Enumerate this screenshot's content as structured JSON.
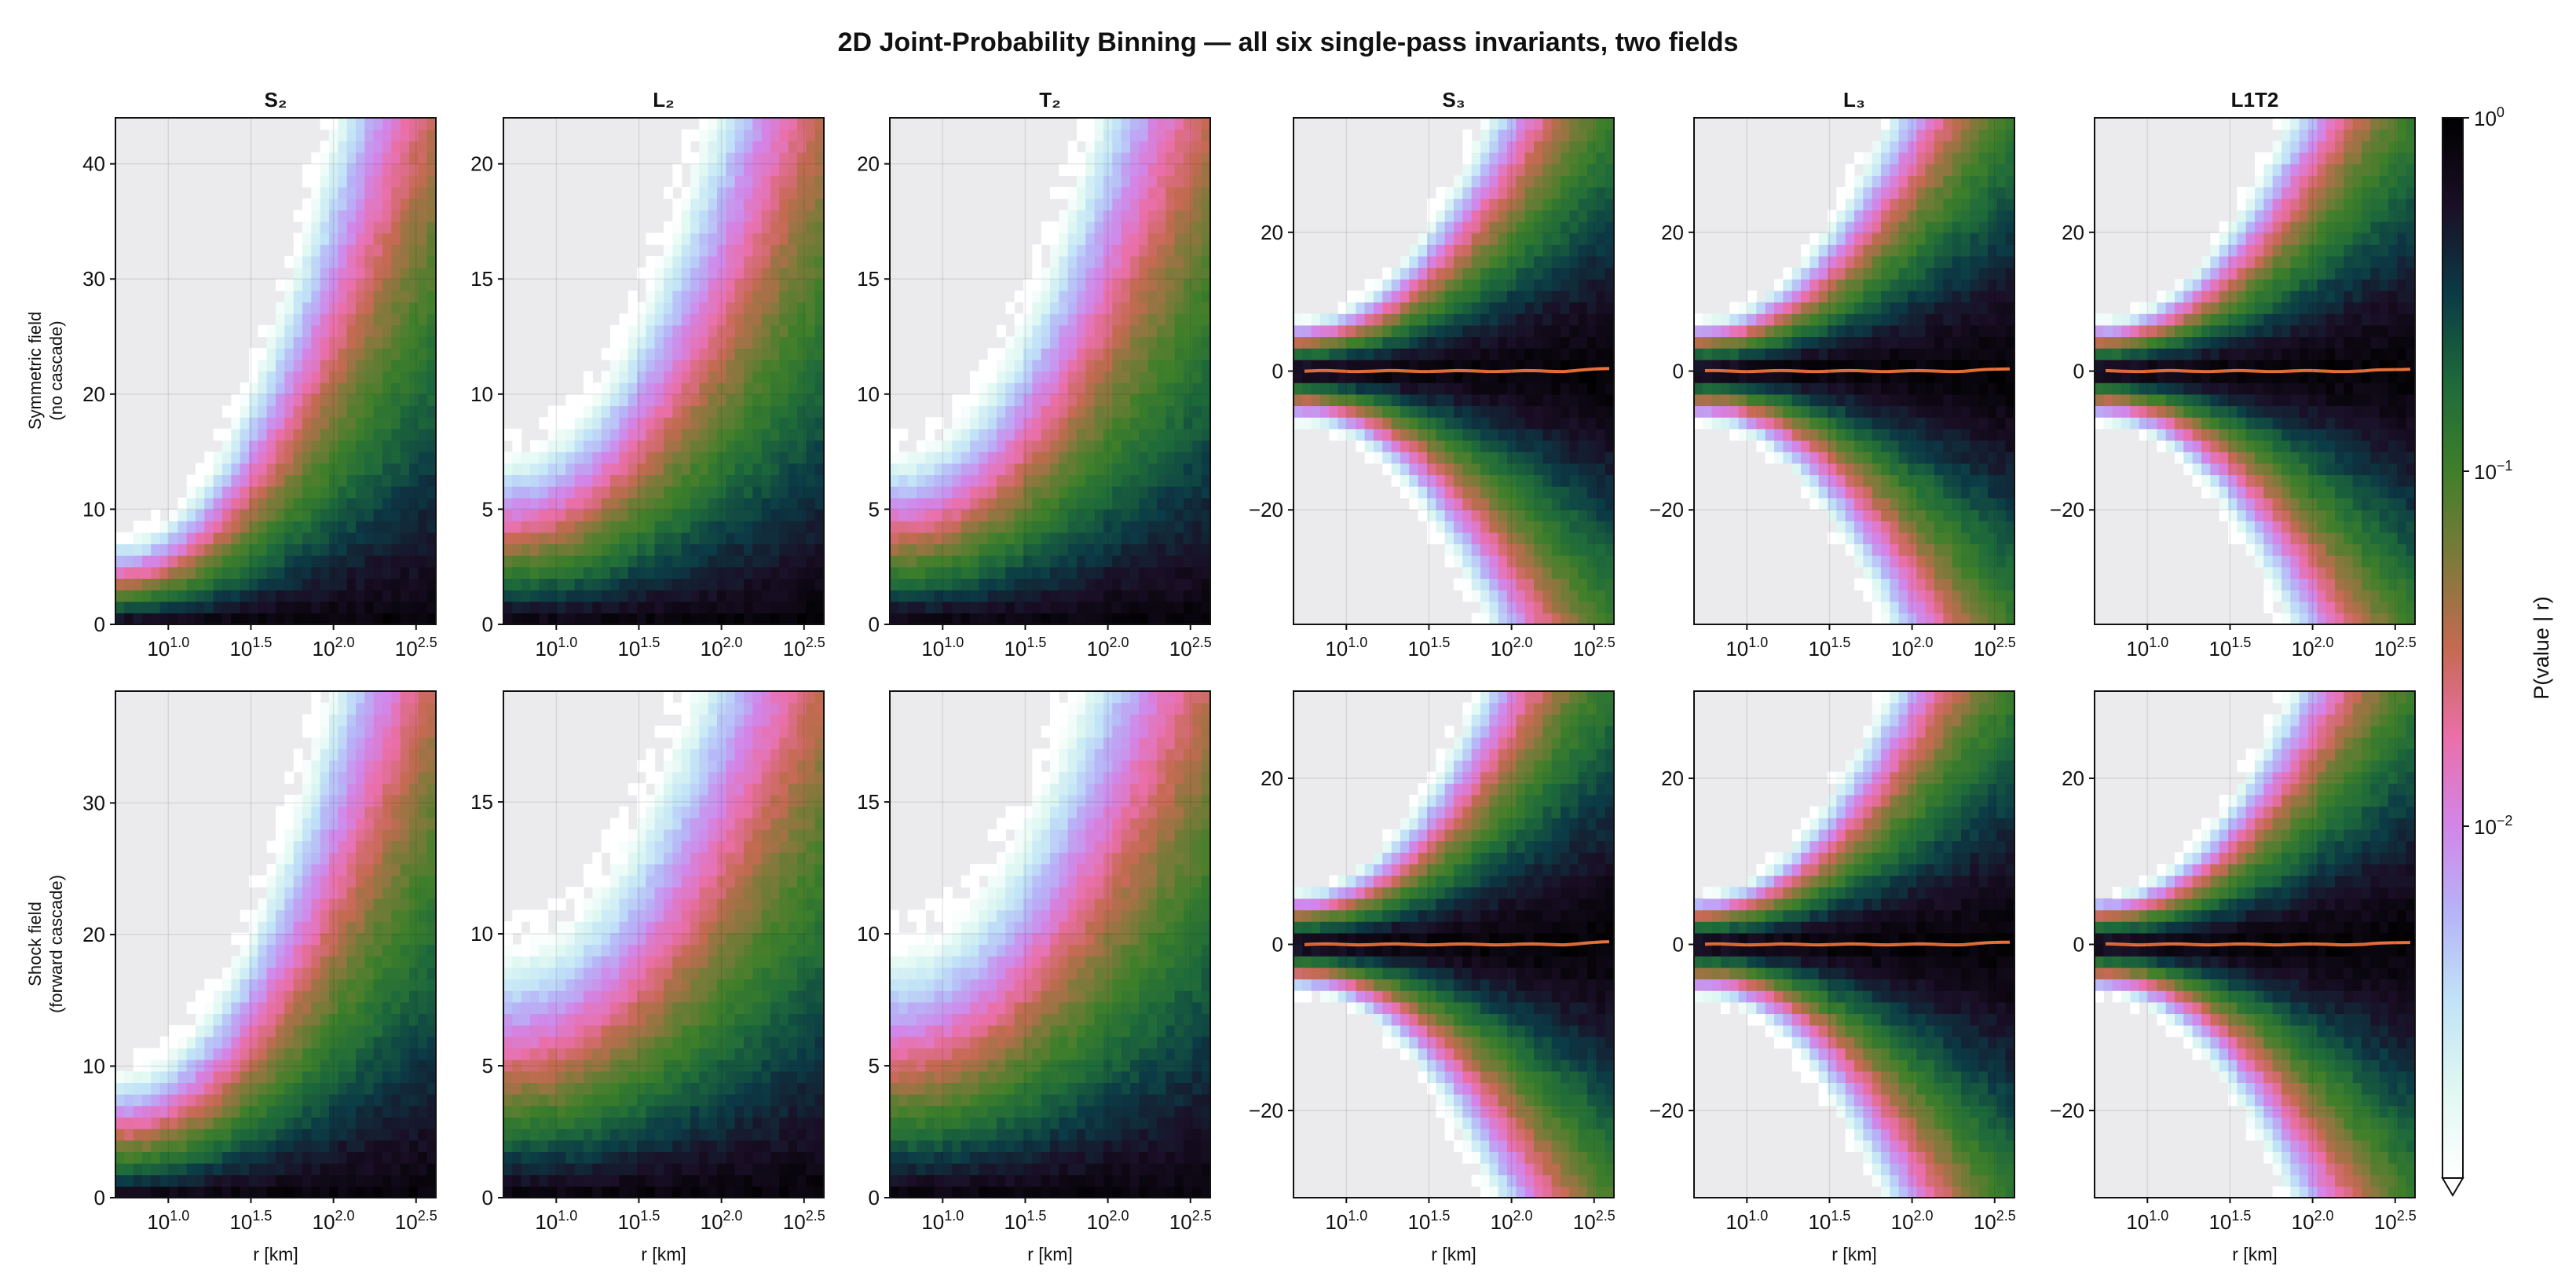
{
  "chart_data": {
    "type": "heatmap",
    "title": "2D Joint-Probability Binning — all six single-pass invariants, two fields",
    "xlabel": "r  [km]",
    "colorbar": {
      "label": "P(value | r)",
      "scale": "log",
      "ticks": [
        {
          "base": "10",
          "exp": "0"
        },
        {
          "base": "10",
          "exp": "−1"
        },
        {
          "base": "10",
          "exp": "−2"
        }
      ],
      "colormap": [
        "#000000",
        "#1a0f26",
        "#0b3b46",
        "#1e6a3a",
        "#3f7f2a",
        "#7e7a3a",
        "#c56a52",
        "#ea6fa8",
        "#d285e8",
        "#b6b4f7",
        "#c1e3f7",
        "#e0f8f2",
        "#ffffff"
      ],
      "extend": "min"
    },
    "x_tick_labels": [
      {
        "base": "10",
        "exp": "1.0"
      },
      {
        "base": "10",
        "exp": "1.5"
      },
      {
        "base": "10",
        "exp": "2.0"
      },
      {
        "base": "10",
        "exp": "2.5"
      }
    ],
    "x_log_range": [
      0.68,
      2.62
    ],
    "grid": true,
    "row_labels": [
      [
        "Symmetric field",
        "(no cascade)"
      ],
      [
        "Shock field",
        "(forward cascade)"
      ]
    ],
    "panels": [
      {
        "row": 0,
        "title": "S₂",
        "kind": "positive",
        "ylim": [
          0,
          44
        ],
        "yticks": [
          "0",
          "10",
          "20",
          "30",
          "40"
        ],
        "mean_line": false
      },
      {
        "row": 0,
        "title": "L₂",
        "kind": "positive",
        "ylim": [
          0,
          22
        ],
        "yticks": [
          "0",
          "5",
          "10",
          "15",
          "20"
        ],
        "mean_line": false
      },
      {
        "row": 0,
        "title": "T₂",
        "kind": "positive",
        "ylim": [
          0,
          22
        ],
        "yticks": [
          "0",
          "5",
          "10",
          "15",
          "20"
        ],
        "mean_line": false
      },
      {
        "row": 0,
        "title": "S₃",
        "kind": "signed",
        "ylim": [
          -36.5,
          36.5
        ],
        "yticks": [
          "−20",
          "0",
          "20"
        ],
        "mean_line": true
      },
      {
        "row": 0,
        "title": "L₃",
        "kind": "signed",
        "ylim": [
          -36.5,
          36.5
        ],
        "yticks": [
          "−20",
          "0",
          "20"
        ],
        "mean_line": true
      },
      {
        "row": 0,
        "title": "L1T2",
        "kind": "signed",
        "ylim": [
          -36.5,
          36.5
        ],
        "yticks": [
          "−20",
          "0",
          "20"
        ],
        "mean_line": true
      },
      {
        "row": 1,
        "title": "",
        "kind": "positive",
        "ylim": [
          0,
          38.5
        ],
        "yticks": [
          "0",
          "10",
          "20",
          "30"
        ],
        "mean_line": false
      },
      {
        "row": 1,
        "title": "",
        "kind": "positive",
        "ylim": [
          0,
          19.2
        ],
        "yticks": [
          "0",
          "5",
          "10",
          "15"
        ],
        "mean_line": false
      },
      {
        "row": 1,
        "title": "",
        "kind": "positive",
        "ylim": [
          0,
          19.2
        ],
        "yticks": [
          "0",
          "5",
          "10",
          "15"
        ],
        "mean_line": false
      },
      {
        "row": 1,
        "title": "",
        "kind": "signed",
        "ylim": [
          -30.5,
          30.5
        ],
        "yticks": [
          "−20",
          "0",
          "20"
        ],
        "mean_line": true
      },
      {
        "row": 1,
        "title": "",
        "kind": "signed",
        "ylim": [
          -30.5,
          30.5
        ],
        "yticks": [
          "−20",
          "0",
          "20"
        ],
        "mean_line": true
      },
      {
        "row": 1,
        "title": "",
        "kind": "signed",
        "ylim": [
          -30.5,
          30.5
        ],
        "yticks": [
          "−20",
          "0",
          "20"
        ],
        "mean_line": true
      }
    ]
  }
}
